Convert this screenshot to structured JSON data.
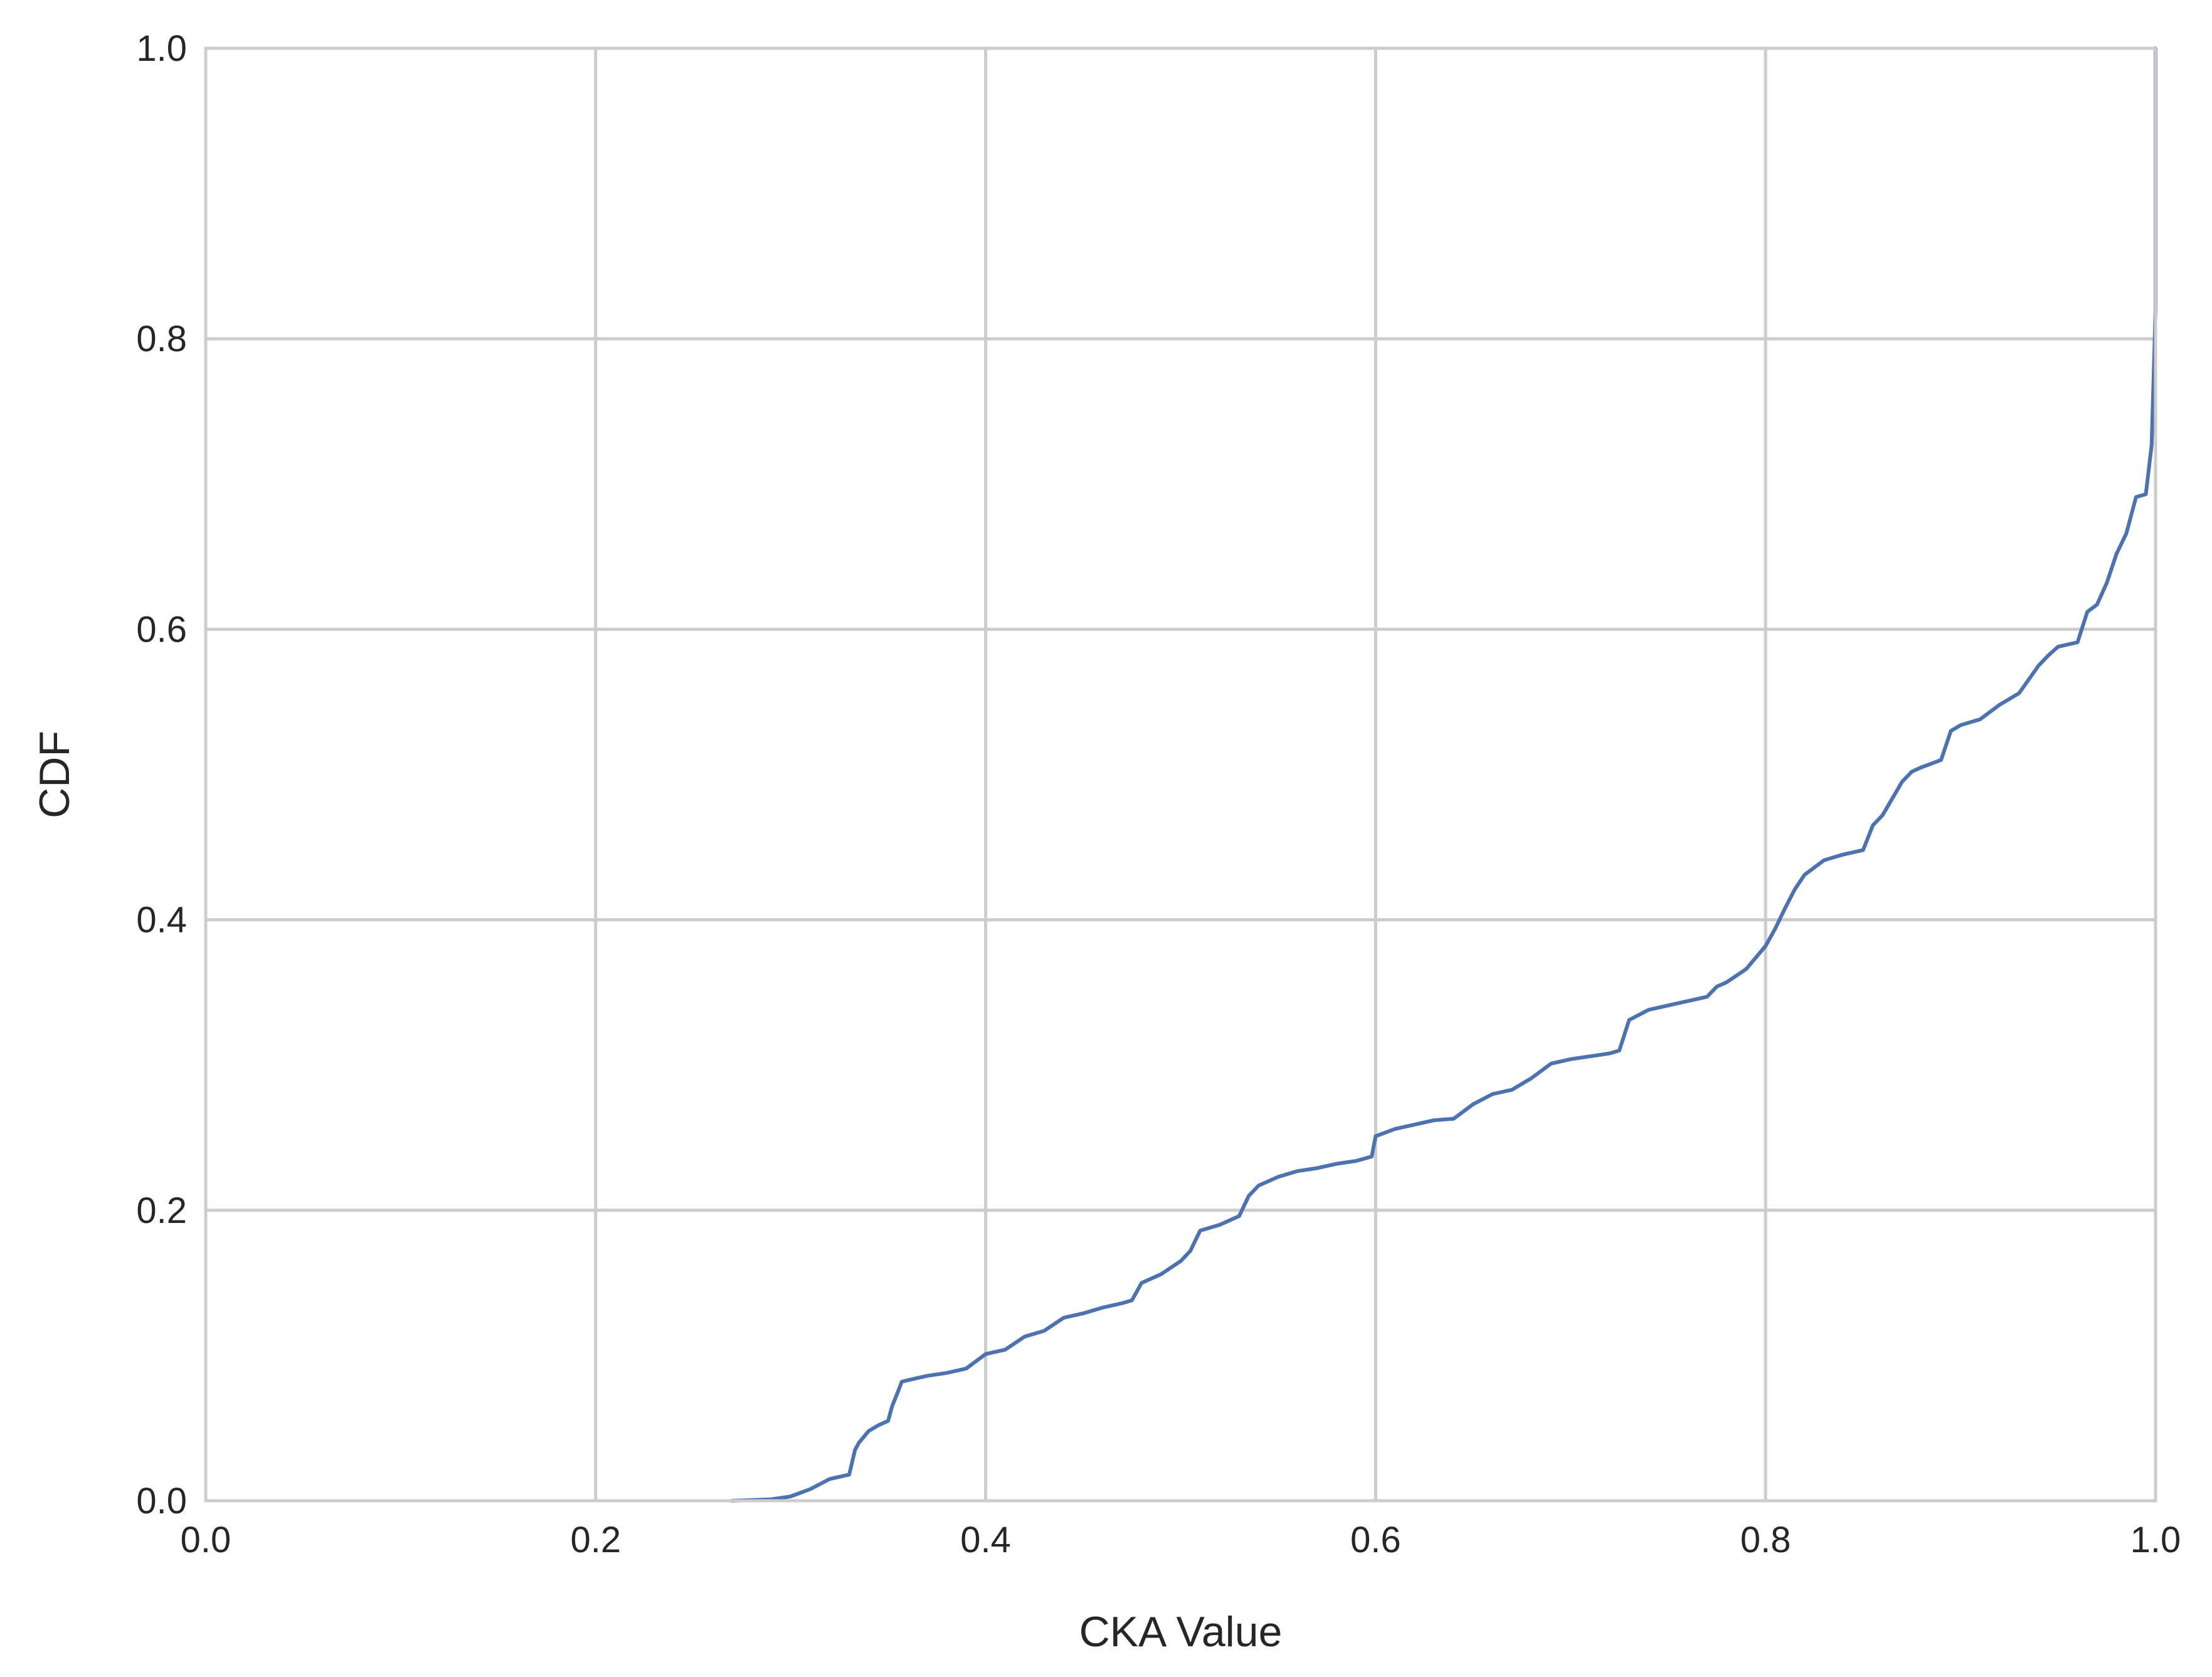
{
  "chart_data": {
    "type": "line",
    "title": "",
    "xlabel": "CKA Value",
    "ylabel": "CDF",
    "xlim": [
      0.0,
      1.0
    ],
    "ylim": [
      0.0,
      1.0
    ],
    "grid": true,
    "line_color": "#4c72b0",
    "x_ticks": [
      "0.0",
      "0.2",
      "0.4",
      "0.6",
      "0.8",
      "1.0"
    ],
    "y_ticks": [
      "0.0",
      "0.2",
      "0.4",
      "0.6",
      "0.8",
      "1.0"
    ],
    "series": [
      {
        "x": [
          0.27,
          0.29,
          0.3,
          0.31,
          0.32,
          0.33,
          0.333,
          0.335,
          0.34,
          0.345,
          0.35,
          0.352,
          0.355,
          0.357,
          0.36,
          0.37,
          0.38,
          0.39,
          0.4,
          0.41,
          0.42,
          0.43,
          0.44,
          0.45,
          0.46,
          0.47,
          0.475,
          0.48,
          0.49,
          0.5,
          0.505,
          0.51,
          0.52,
          0.53,
          0.535,
          0.54,
          0.55,
          0.56,
          0.57,
          0.58,
          0.59,
          0.598,
          0.6,
          0.61,
          0.62,
          0.63,
          0.64,
          0.65,
          0.66,
          0.67,
          0.68,
          0.69,
          0.7,
          0.71,
          0.72,
          0.725,
          0.73,
          0.74,
          0.75,
          0.76,
          0.77,
          0.775,
          0.78,
          0.79,
          0.795,
          0.8,
          0.805,
          0.81,
          0.815,
          0.82,
          0.83,
          0.84,
          0.85,
          0.855,
          0.86,
          0.87,
          0.875,
          0.88,
          0.89,
          0.895,
          0.9,
          0.91,
          0.92,
          0.93,
          0.94,
          0.945,
          0.95,
          0.96,
          0.965,
          0.97,
          0.975,
          0.98,
          0.985,
          0.99,
          0.995,
          0.998,
          1.0,
          1.0
        ],
        "y": [
          0.0,
          0.001,
          0.003,
          0.008,
          0.015,
          0.018,
          0.035,
          0.04,
          0.048,
          0.052,
          0.055,
          0.065,
          0.075,
          0.082,
          0.083,
          0.086,
          0.088,
          0.091,
          0.101,
          0.104,
          0.113,
          0.117,
          0.126,
          0.129,
          0.133,
          0.136,
          0.138,
          0.15,
          0.156,
          0.165,
          0.172,
          0.186,
          0.19,
          0.196,
          0.21,
          0.217,
          0.223,
          0.227,
          0.229,
          0.232,
          0.234,
          0.237,
          0.251,
          0.256,
          0.259,
          0.262,
          0.263,
          0.273,
          0.28,
          0.283,
          0.291,
          0.301,
          0.304,
          0.306,
          0.308,
          0.31,
          0.331,
          0.338,
          0.341,
          0.344,
          0.347,
          0.354,
          0.357,
          0.366,
          0.374,
          0.382,
          0.394,
          0.408,
          0.421,
          0.431,
          0.441,
          0.445,
          0.448,
          0.465,
          0.472,
          0.495,
          0.502,
          0.505,
          0.51,
          0.53,
          0.534,
          0.538,
          0.548,
          0.556,
          0.575,
          0.582,
          0.588,
          0.591,
          0.612,
          0.617,
          0.632,
          0.652,
          0.666,
          0.691,
          0.693,
          0.727,
          0.82,
          1.0
        ]
      }
    ]
  }
}
